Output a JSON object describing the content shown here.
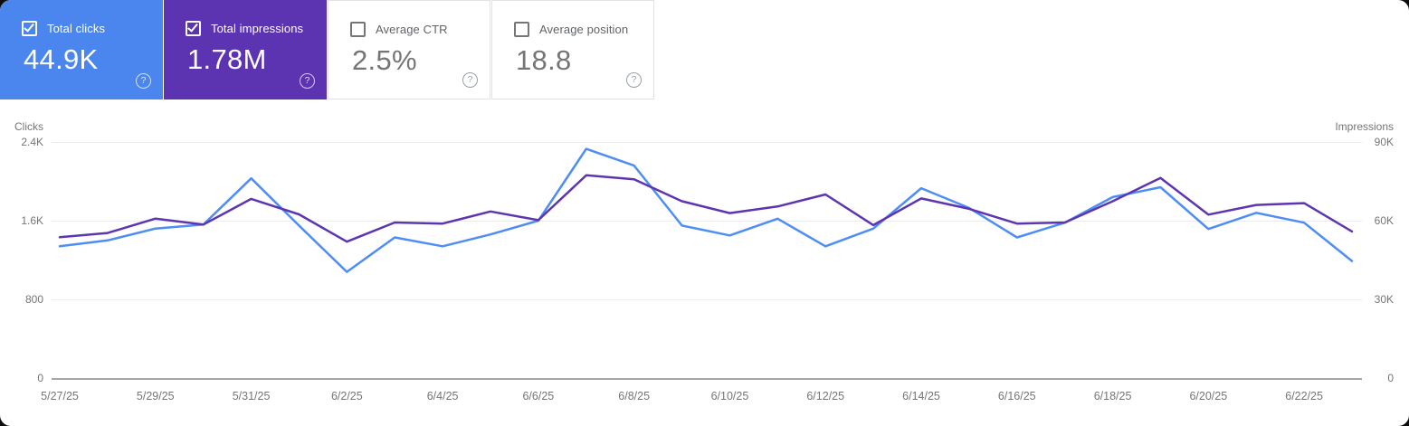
{
  "cards": [
    {
      "label": "Total clicks",
      "value": "44.9K",
      "checked": true,
      "selected": true,
      "color": "#4a86ee"
    },
    {
      "label": "Total impressions",
      "value": "1.78M",
      "checked": true,
      "selected": true,
      "color": "#5c34b2"
    },
    {
      "label": "Average CTR",
      "value": "2.5%",
      "checked": false,
      "selected": false,
      "color": null
    },
    {
      "label": "Average position",
      "value": "18.8",
      "checked": false,
      "selected": false,
      "color": null
    }
  ],
  "icons": {
    "help_glyph": "?"
  },
  "chart_data": {
    "type": "line",
    "x": [
      "5/27/25",
      "5/28/25",
      "5/29/25",
      "5/30/25",
      "5/31/25",
      "6/1/25",
      "6/2/25",
      "6/3/25",
      "6/4/25",
      "6/5/25",
      "6/6/25",
      "6/7/25",
      "6/8/25",
      "6/9/25",
      "6/10/25",
      "6/11/25",
      "6/12/25",
      "6/13/25",
      "6/14/25",
      "6/15/25",
      "6/16/25",
      "6/17/25",
      "6/18/25",
      "6/19/25",
      "6/20/25",
      "6/21/25",
      "6/22/25",
      "6/23/25"
    ],
    "x_tick_labels": [
      "5/27/25",
      "5/29/25",
      "5/31/25",
      "6/2/25",
      "6/4/25",
      "6/6/25",
      "6/8/25",
      "6/10/25",
      "6/12/25",
      "6/14/25",
      "6/16/25",
      "6/18/25",
      "6/20/25",
      "6/22/25"
    ],
    "series": [
      {
        "id": "clicks",
        "name": "Total clicks",
        "axis": "left",
        "color": "#4e8df6",
        "values": [
          1340,
          1400,
          1520,
          1560,
          2030,
          1550,
          1080,
          1430,
          1340,
          1460,
          1600,
          2330,
          2160,
          1550,
          1450,
          1620,
          1340,
          1520,
          1930,
          1730,
          1430,
          1580,
          1840,
          1940,
          1515,
          1680,
          1580,
          1190
        ]
      },
      {
        "id": "impressions",
        "name": "Total impressions",
        "axis": "right",
        "color": "#5e35b1",
        "values": [
          53700,
          55300,
          60800,
          58500,
          68300,
          62400,
          52000,
          59300,
          58900,
          63500,
          60200,
          77300,
          75800,
          67400,
          62900,
          65400,
          70000,
          58300,
          68500,
          64500,
          58900,
          59300,
          67400,
          76300,
          62300,
          66000,
          66700,
          55900
        ]
      }
    ],
    "left_axis": {
      "title": "Clicks",
      "ticks": [
        "2.4K",
        "1.6K",
        "800",
        "0"
      ],
      "max": 2400,
      "min": 0
    },
    "right_axis": {
      "title": "Impressions",
      "ticks": [
        "90K",
        "60K",
        "30K",
        "0"
      ],
      "max": 90000,
      "min": 0
    },
    "grid": "horizontal",
    "legend": "none"
  }
}
